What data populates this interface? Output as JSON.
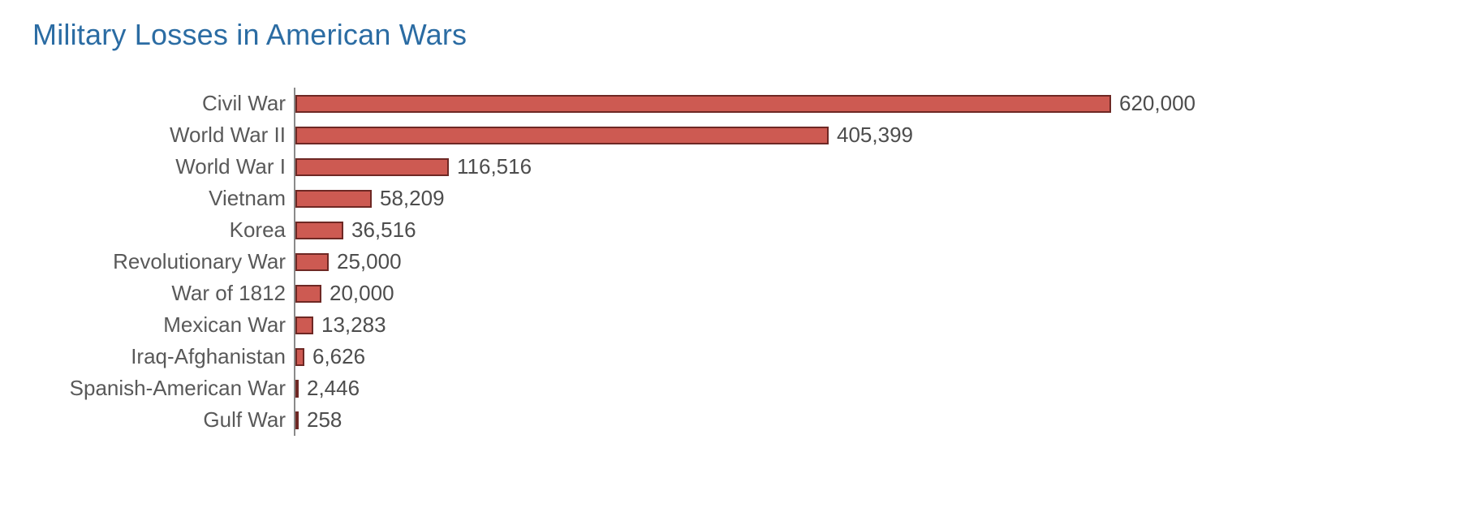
{
  "chart_data": {
    "type": "bar",
    "orientation": "horizontal",
    "title": "Military Losses in American Wars",
    "categories": [
      "Civil War",
      "World War II",
      "World War I",
      "Vietnam",
      "Korea",
      "Revolutionary War",
      "War of 1812",
      "Mexican War",
      "Iraq-Afghanistan",
      "Spanish-American War",
      "Gulf War"
    ],
    "values": [
      620000,
      405399,
      116516,
      58209,
      36516,
      25000,
      20000,
      13283,
      6626,
      2446,
      258
    ],
    "value_labels": [
      "620,000",
      "405,399",
      "116,516",
      "58,209",
      "36,516",
      "25,000",
      "20,000",
      "13,283",
      "6,626",
      "2,446",
      "258"
    ],
    "xlim": [
      0,
      620000
    ],
    "grid": false,
    "legend": "none",
    "colors": {
      "title_color": "#2b6ca3",
      "bar_fill": "#cd5a52",
      "bar_border": "#6e2824",
      "axis_line": "#8a8a8a",
      "label_text": "#595959"
    }
  }
}
